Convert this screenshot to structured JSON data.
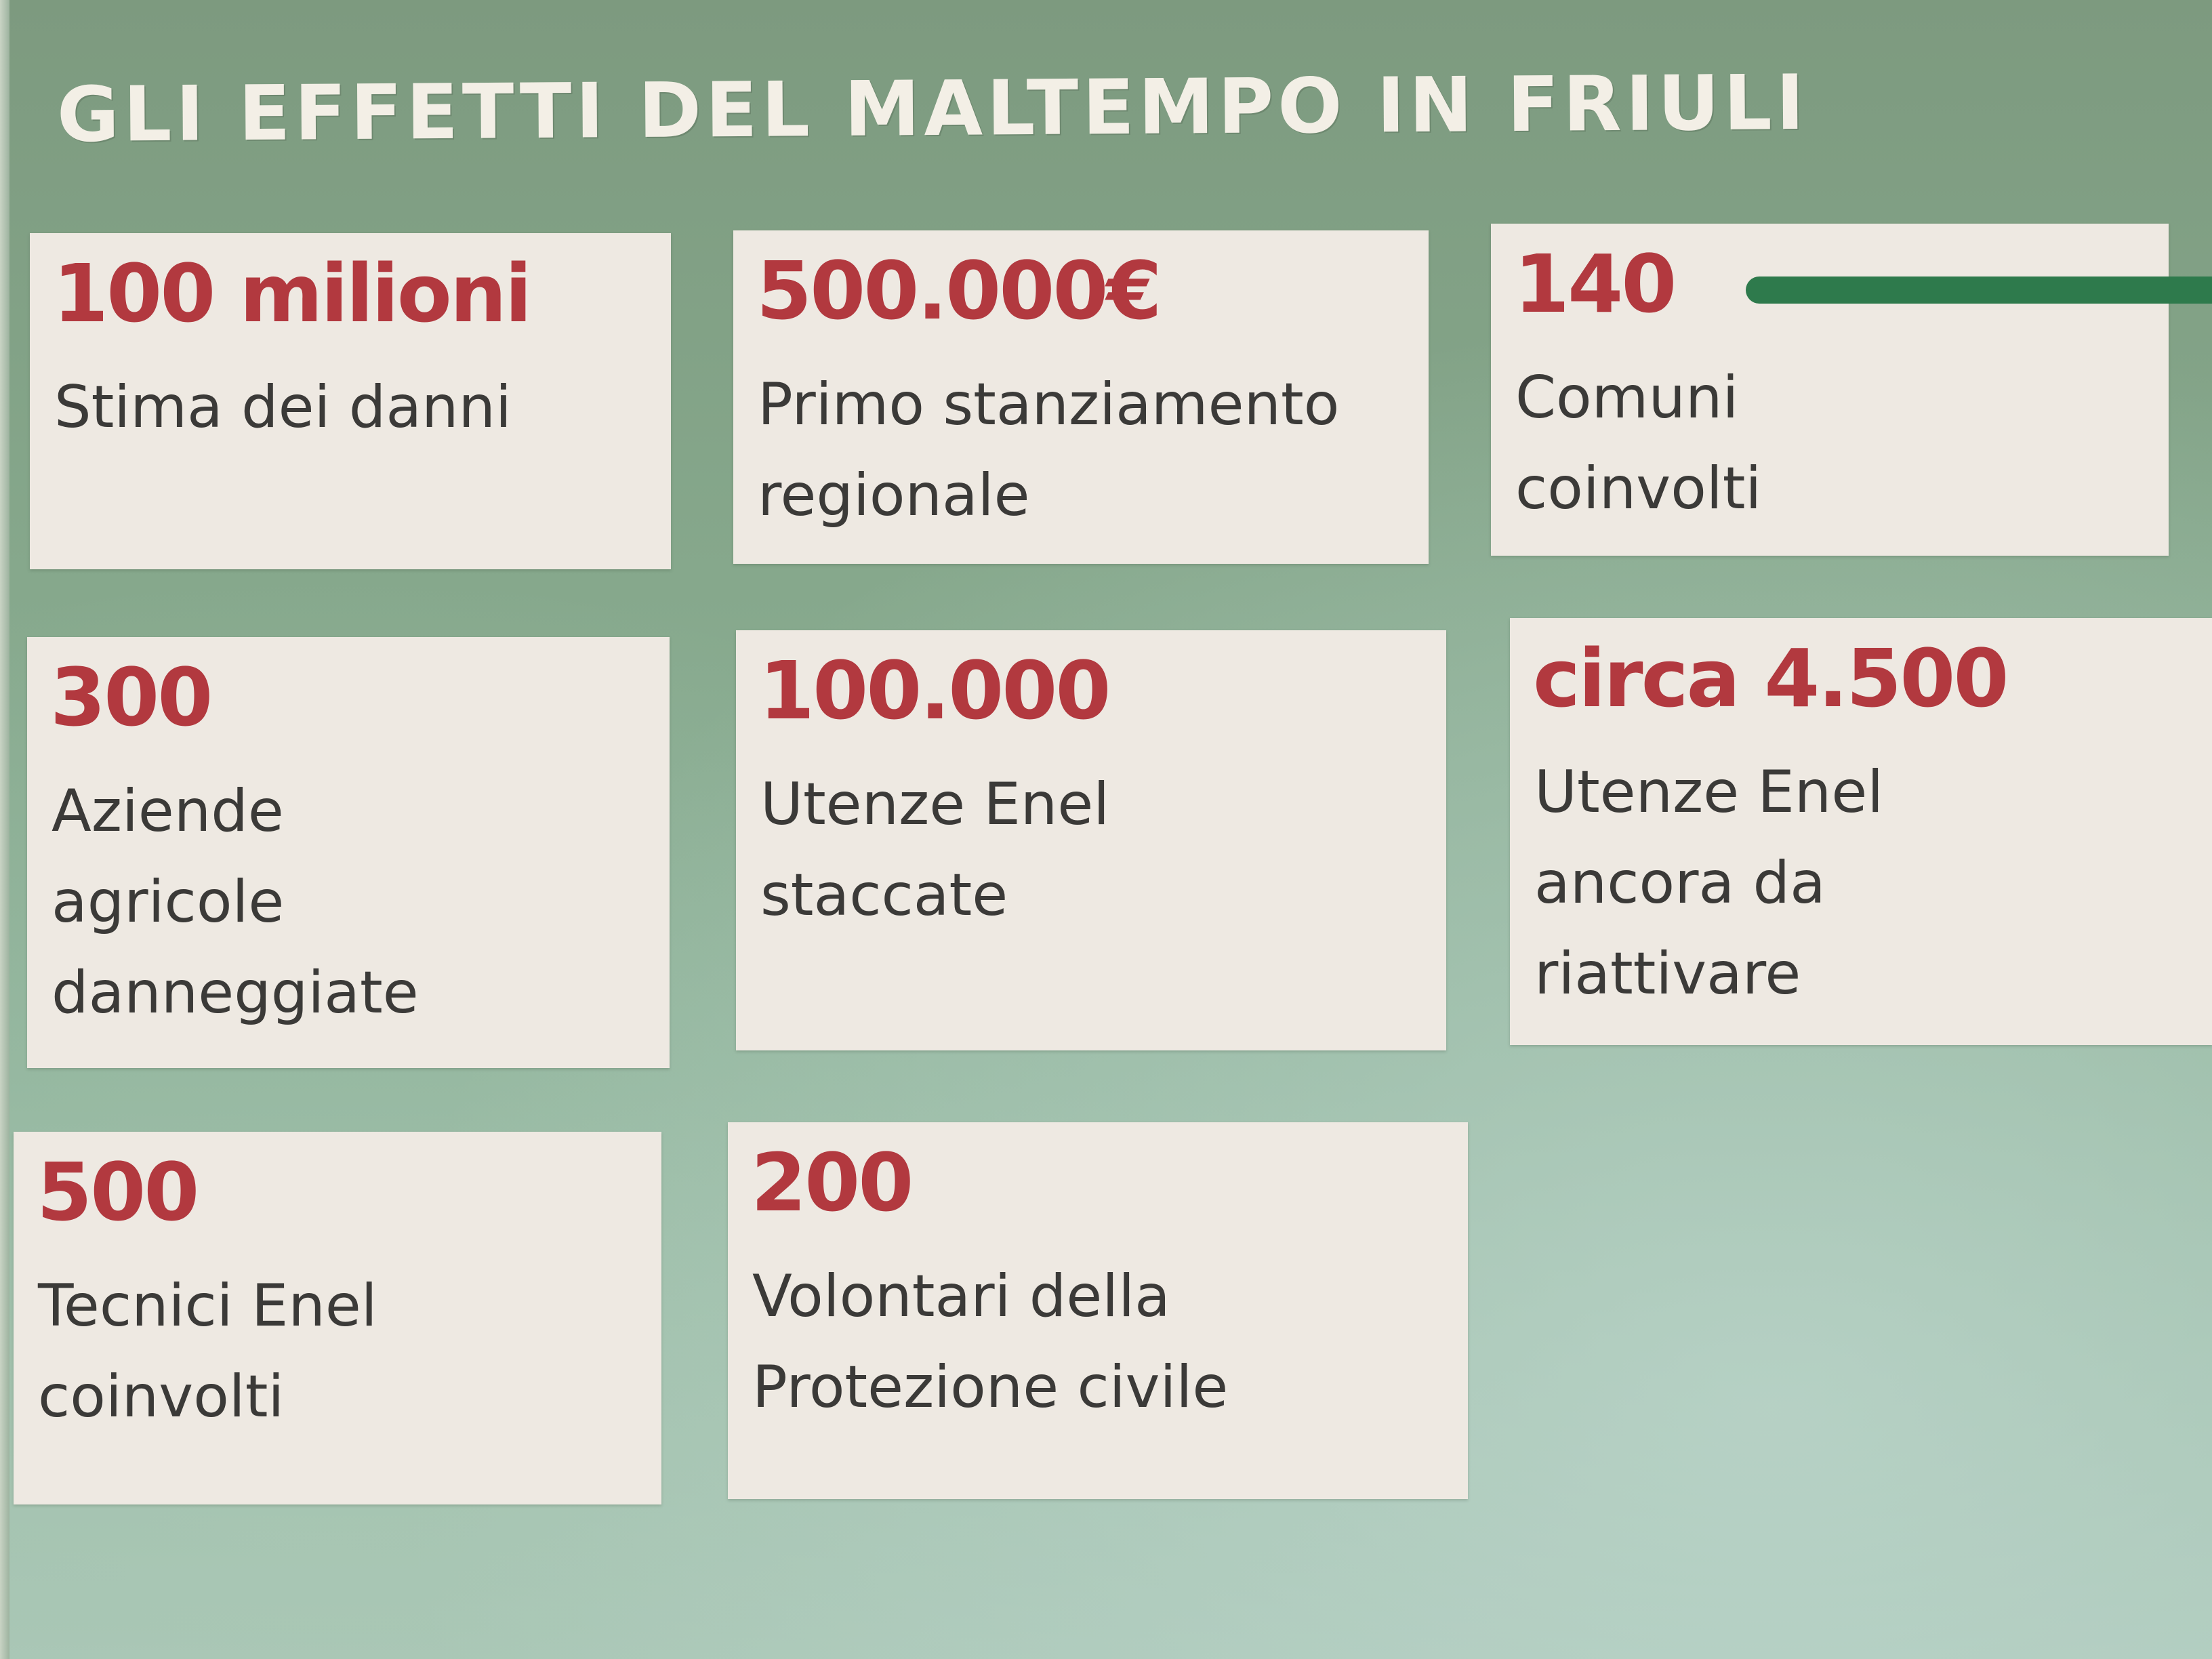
{
  "title": "GLI EFFETTI DEL MALTEMPO IN FRIULI",
  "cards": [
    {
      "value": "100 milioni",
      "label_lines": [
        "Stima dei danni"
      ]
    },
    {
      "value": "500.000€",
      "label_lines": [
        "Primo stanziamento",
        "regionale"
      ]
    },
    {
      "value": "140",
      "label_lines": [
        "Comuni",
        "coinvolti"
      ]
    },
    {
      "value": "300",
      "label_lines": [
        "Aziende",
        "agricole",
        "danneggiate"
      ]
    },
    {
      "value": "100.000",
      "label_lines": [
        "Utenze Enel",
        "staccate"
      ]
    },
    {
      "value": "circa 4.500",
      "label_lines": [
        "Utenze Enel",
        "ancora da",
        "riattivare"
      ]
    },
    {
      "value": "500",
      "label_lines": [
        "Tecnici Enel",
        "coinvolti"
      ]
    },
    {
      "value": "200",
      "label_lines": [
        "Volontari della",
        "Protezione civile"
      ]
    }
  ],
  "colors": {
    "value_red": "#b2393f",
    "card_bg": "#eee9e2",
    "background_green": "#86a88c",
    "rule_green": "#2e7a4c",
    "title_text": "#f3efe6"
  }
}
